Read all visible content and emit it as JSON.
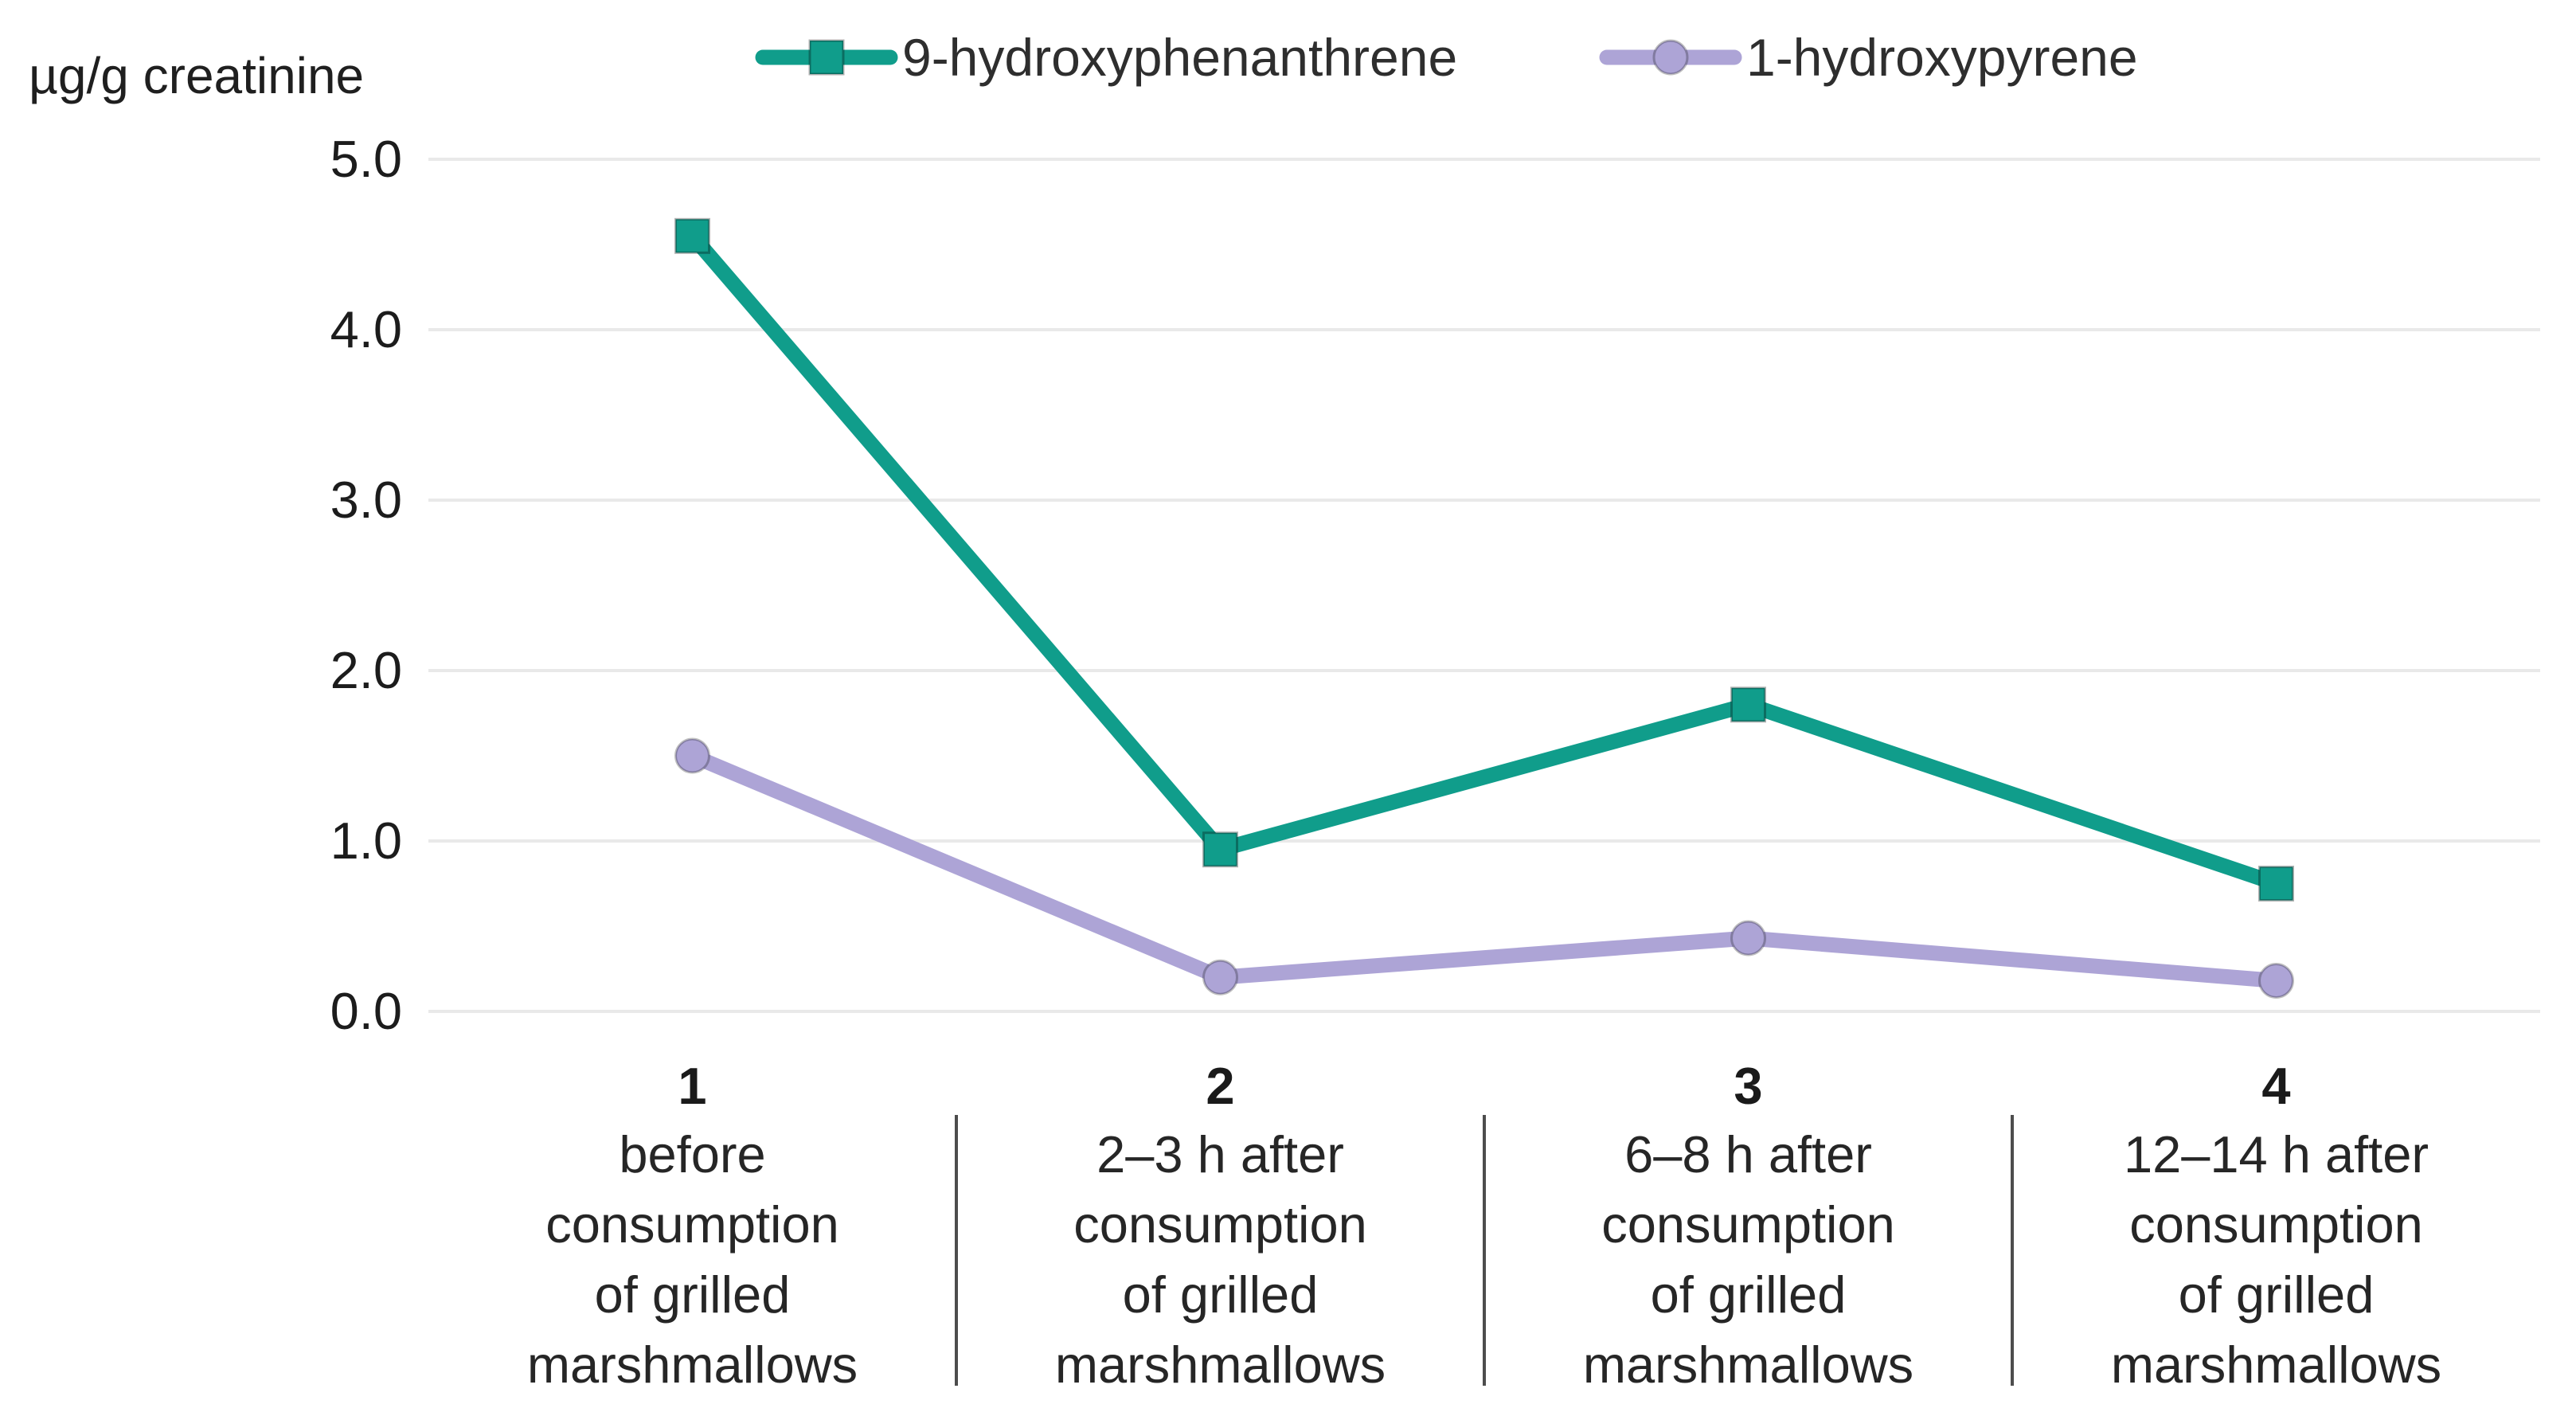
{
  "unit_label": "µg/g creatinine",
  "chart_data": {
    "type": "line",
    "title": "",
    "ylabel": "µg/g creatinine",
    "xlabel": "",
    "ylim": [
      0,
      5
    ],
    "y_ticks": [
      "5.0",
      "4.0",
      "3.0",
      "2.0",
      "1.0",
      "0.0"
    ],
    "y_tick_values": [
      5,
      4,
      3,
      2,
      1,
      0
    ],
    "grid": "horizontal",
    "legend_position": "top",
    "categories": [
      {
        "number": "1",
        "lines": [
          "before",
          "consumption",
          "of grilled",
          "marshmallows"
        ]
      },
      {
        "number": "2",
        "lines": [
          "2–3 h after",
          "consumption",
          "of grilled",
          "marshmallows"
        ]
      },
      {
        "number": "3",
        "lines": [
          "6–8 h after",
          "consumption",
          "of grilled",
          "marshmallows"
        ]
      },
      {
        "number": "4",
        "lines": [
          "12–14 h after",
          "consumption",
          "of grilled",
          "marshmallows"
        ]
      }
    ],
    "series": [
      {
        "name": "9-hydroxyphenanthrene",
        "marker": "square",
        "color": "#109d8b",
        "values": [
          4.55,
          0.95,
          1.8,
          0.75
        ]
      },
      {
        "name": "1-hydroxypyrene",
        "marker": "circle",
        "color": "#ada4d6",
        "values": [
          1.5,
          0.2,
          0.43,
          0.18
        ]
      }
    ]
  },
  "colors": {
    "gridline": "#e9e9e9",
    "divider": "#4d4d4d",
    "text": "#262626",
    "tick_text": "#1c1c1c"
  }
}
